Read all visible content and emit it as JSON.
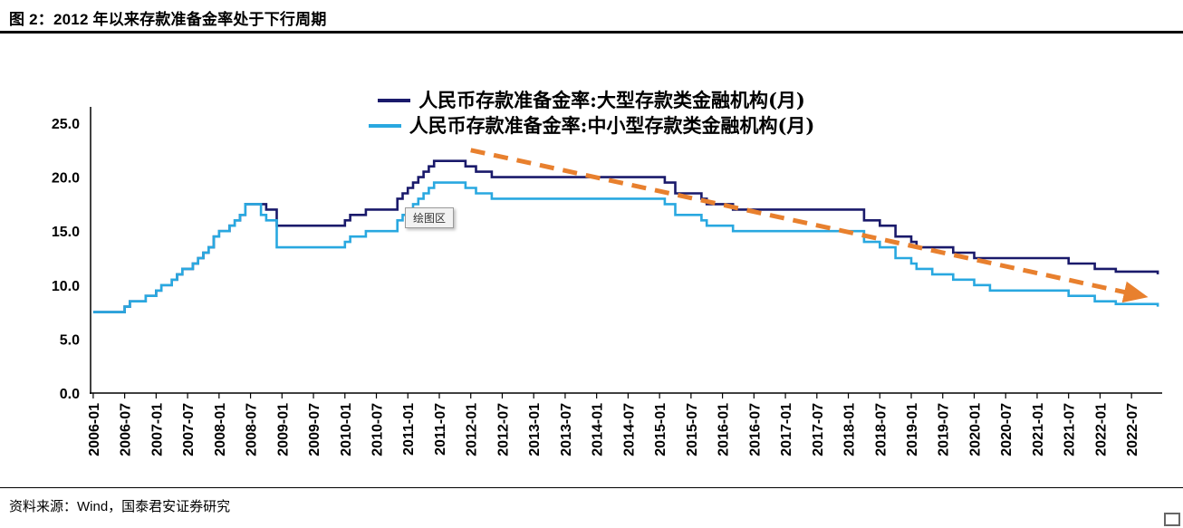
{
  "header": {
    "title": "图 2：2012 年以来存款准备金率处于下行周期"
  },
  "footer": {
    "source": "资料来源：Wind，国泰君安证券研究"
  },
  "tooltip": {
    "label": "绘图区"
  },
  "legend": [
    {
      "label": "人民币存款准备金率:大型存款类金融机构(月)",
      "color": "#1a1a6b"
    },
    {
      "label": "人民币存款准备金率:中小型存款类金融机构(月)",
      "color": "#29a8e0"
    }
  ],
  "chart_data": {
    "type": "line",
    "title": "2012 年以来存款准备金率处于下行周期",
    "xlabel": "",
    "ylabel": "",
    "ylim": [
      0,
      25
    ],
    "yticks": [
      0,
      5,
      10,
      15,
      20,
      25
    ],
    "ytick_labels": [
      "0.0",
      "5.0",
      "10.0",
      "15.0",
      "20.0",
      "25.0"
    ],
    "grid": false,
    "legend_position": "top",
    "x_unit": "month",
    "x_start": "2006-01",
    "total_months": 204,
    "xtick_interval_months": 6,
    "xtick_labels": [
      "2006-01",
      "2006-07",
      "2007-01",
      "2007-07",
      "2008-01",
      "2008-07",
      "2009-01",
      "2009-07",
      "2010-01",
      "2010-07",
      "2011-01",
      "2011-07",
      "2012-01",
      "2012-07",
      "2013-01",
      "2013-07",
      "2014-01",
      "2014-07",
      "2015-01",
      "2015-07",
      "2016-01",
      "2016-07",
      "2017-01",
      "2017-07",
      "2018-01",
      "2018-07",
      "2019-01",
      "2019-07",
      "2020-01",
      "2020-07",
      "2021-01",
      "2021-07",
      "2022-01",
      "2022-07"
    ],
    "series": [
      {
        "name": "人民币存款准备金率:大型存款类金融机构(月)",
        "color": "#1a1a6b",
        "interpolation": "step-after",
        "step_points": [
          [
            "2006-01",
            7.5
          ],
          [
            "2006-07",
            8.0
          ],
          [
            "2006-08",
            8.5
          ],
          [
            "2006-11",
            9.0
          ],
          [
            "2007-01",
            9.5
          ],
          [
            "2007-02",
            10.0
          ],
          [
            "2007-04",
            10.5
          ],
          [
            "2007-05",
            11.0
          ],
          [
            "2007-06",
            11.5
          ],
          [
            "2007-08",
            12.0
          ],
          [
            "2007-09",
            12.5
          ],
          [
            "2007-10",
            13.0
          ],
          [
            "2007-11",
            13.5
          ],
          [
            "2007-12",
            14.5
          ],
          [
            "2008-01",
            15.0
          ],
          [
            "2008-03",
            15.5
          ],
          [
            "2008-04",
            16.0
          ],
          [
            "2008-05",
            16.5
          ],
          [
            "2008-06",
            17.5
          ],
          [
            "2008-10",
            17.0
          ],
          [
            "2008-12",
            15.5
          ],
          [
            "2010-01",
            16.0
          ],
          [
            "2010-02",
            16.5
          ],
          [
            "2010-05",
            17.0
          ],
          [
            "2010-11",
            18.0
          ],
          [
            "2010-12",
            18.5
          ],
          [
            "2011-01",
            19.0
          ],
          [
            "2011-02",
            19.5
          ],
          [
            "2011-03",
            20.0
          ],
          [
            "2011-04",
            20.5
          ],
          [
            "2011-05",
            21.0
          ],
          [
            "2011-06",
            21.5
          ],
          [
            "2011-12",
            21.0
          ],
          [
            "2012-02",
            20.5
          ],
          [
            "2012-05",
            20.0
          ],
          [
            "2015-02",
            19.5
          ],
          [
            "2015-04",
            18.5
          ],
          [
            "2015-09",
            18.0
          ],
          [
            "2015-10",
            17.5
          ],
          [
            "2016-03",
            17.0
          ],
          [
            "2018-04",
            16.0
          ],
          [
            "2018-07",
            15.5
          ],
          [
            "2018-10",
            14.5
          ],
          [
            "2019-01",
            14.0
          ],
          [
            "2019-02",
            13.5
          ],
          [
            "2019-09",
            13.0
          ],
          [
            "2020-01",
            12.5
          ],
          [
            "2021-07",
            12.0
          ],
          [
            "2021-12",
            11.5
          ],
          [
            "2022-04",
            11.25
          ],
          [
            "2022-12",
            11.0
          ]
        ]
      },
      {
        "name": "人民币存款准备金率:中小型存款类金融机构(月)",
        "color": "#29a8e0",
        "interpolation": "step-after",
        "step_points": [
          [
            "2006-01",
            7.5
          ],
          [
            "2006-07",
            8.0
          ],
          [
            "2006-08",
            8.5
          ],
          [
            "2006-11",
            9.0
          ],
          [
            "2007-01",
            9.5
          ],
          [
            "2007-02",
            10.0
          ],
          [
            "2007-04",
            10.5
          ],
          [
            "2007-05",
            11.0
          ],
          [
            "2007-06",
            11.5
          ],
          [
            "2007-08",
            12.0
          ],
          [
            "2007-09",
            12.5
          ],
          [
            "2007-10",
            13.0
          ],
          [
            "2007-11",
            13.5
          ],
          [
            "2007-12",
            14.5
          ],
          [
            "2008-01",
            15.0
          ],
          [
            "2008-03",
            15.5
          ],
          [
            "2008-04",
            16.0
          ],
          [
            "2008-05",
            16.5
          ],
          [
            "2008-06",
            17.5
          ],
          [
            "2008-09",
            16.5
          ],
          [
            "2008-10",
            16.0
          ],
          [
            "2008-12",
            13.5
          ],
          [
            "2010-01",
            14.0
          ],
          [
            "2010-02",
            14.5
          ],
          [
            "2010-05",
            15.0
          ],
          [
            "2010-11",
            16.0
          ],
          [
            "2010-12",
            16.5
          ],
          [
            "2011-01",
            17.0
          ],
          [
            "2011-02",
            17.5
          ],
          [
            "2011-03",
            18.0
          ],
          [
            "2011-04",
            18.5
          ],
          [
            "2011-05",
            19.0
          ],
          [
            "2011-06",
            19.5
          ],
          [
            "2011-12",
            19.0
          ],
          [
            "2012-02",
            18.5
          ],
          [
            "2012-05",
            18.0
          ],
          [
            "2015-02",
            17.5
          ],
          [
            "2015-04",
            16.5
          ],
          [
            "2015-09",
            16.0
          ],
          [
            "2015-10",
            15.5
          ],
          [
            "2016-03",
            15.0
          ],
          [
            "2018-04",
            14.0
          ],
          [
            "2018-07",
            13.5
          ],
          [
            "2018-10",
            12.5
          ],
          [
            "2019-01",
            12.0
          ],
          [
            "2019-02",
            11.5
          ],
          [
            "2019-05",
            11.0
          ],
          [
            "2019-09",
            10.5
          ],
          [
            "2020-01",
            10.0
          ],
          [
            "2020-04",
            9.5
          ],
          [
            "2021-07",
            9.0
          ],
          [
            "2021-12",
            8.5
          ],
          [
            "2022-04",
            8.25
          ],
          [
            "2022-12",
            8.0
          ]
        ]
      }
    ],
    "annotation_arrow": {
      "style": "dashed",
      "color": "#e8802e",
      "from": [
        "2012-01",
        22.5
      ],
      "to": [
        "2022-09",
        9.0
      ]
    }
  }
}
